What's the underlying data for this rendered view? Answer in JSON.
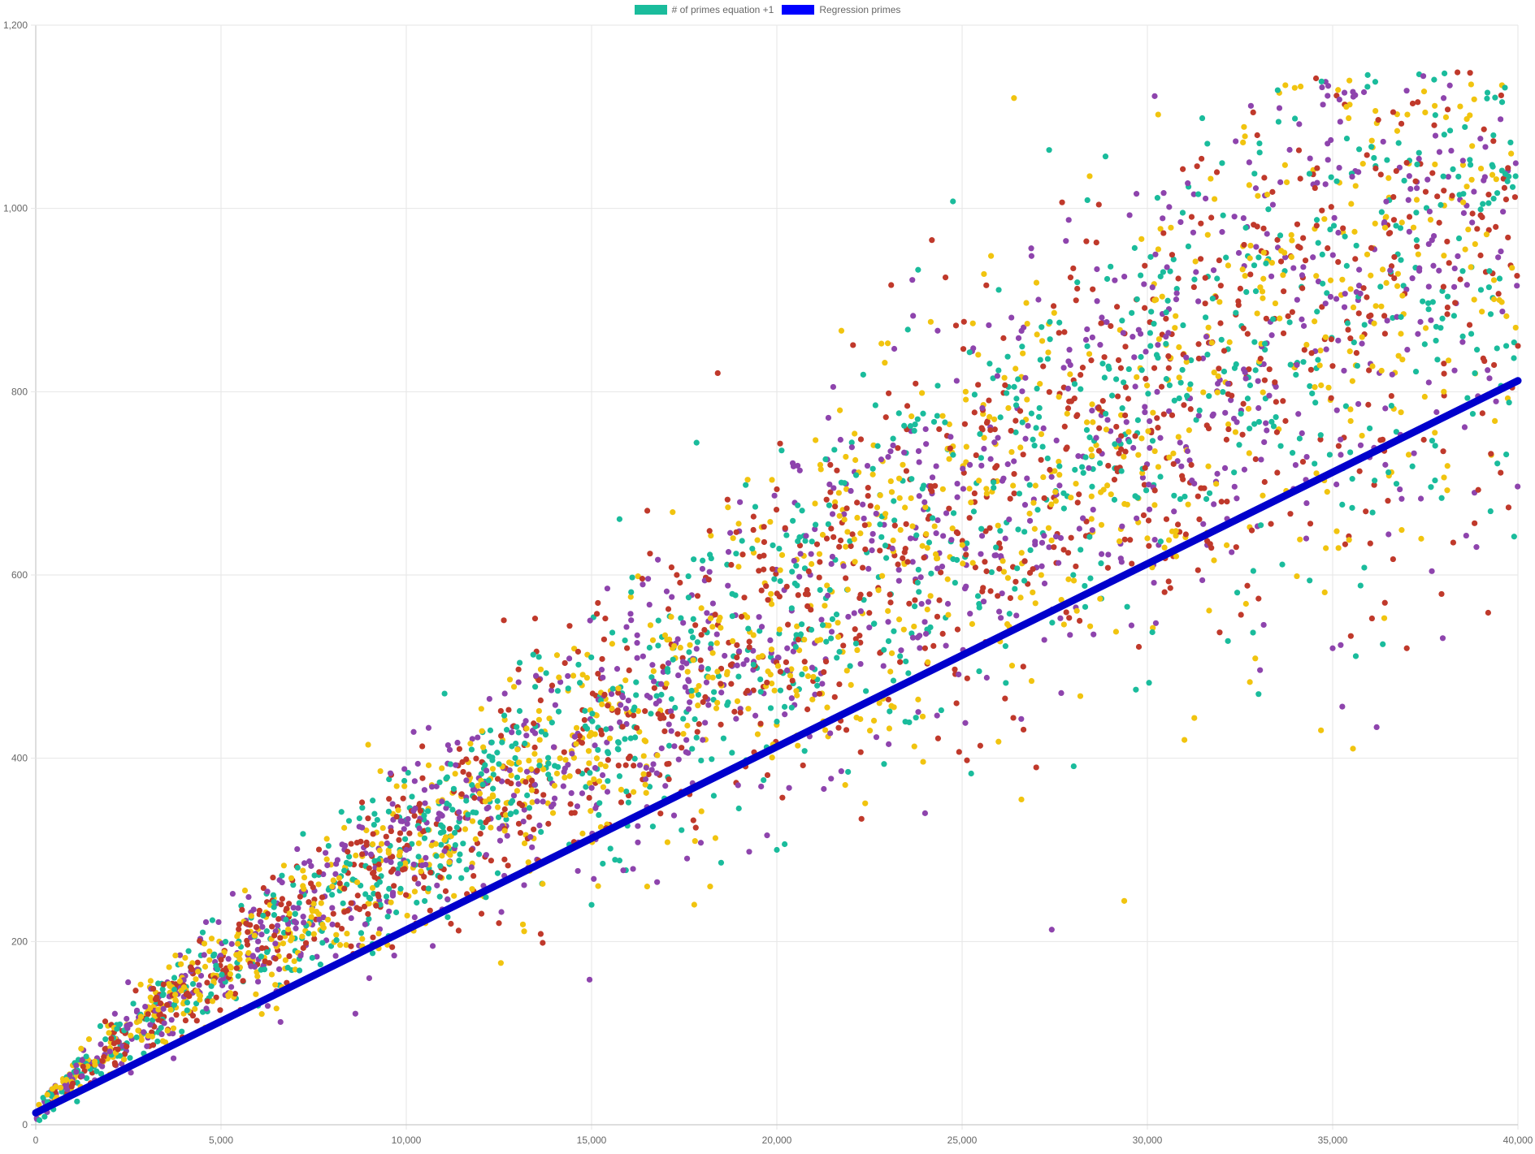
{
  "chart_data": {
    "type": "scatter",
    "title": "",
    "xlabel": "",
    "ylabel": "",
    "xlim": [
      0,
      40000
    ],
    "ylim": [
      0,
      1200
    ],
    "x_ticks": [
      "0",
      "5,000",
      "10,000",
      "15,000",
      "20,000",
      "25,000",
      "30,000",
      "35,000",
      "40,000"
    ],
    "y_ticks": [
      "0",
      "200",
      "400",
      "600",
      "800",
      "1,000",
      "1,200"
    ],
    "grid": true,
    "legend_position": "top-center",
    "point_colors": [
      "#1abc9c",
      "#f1c40f",
      "#c0392b",
      "#8e44ad"
    ],
    "series": [
      {
        "name": "# of primes equation +1",
        "legend_color": "#1abc9c",
        "points": [
          [
            100,
            5
          ],
          [
            500,
            25
          ],
          [
            1000,
            45
          ],
          [
            2000,
            80
          ],
          [
            3000,
            115
          ],
          [
            4000,
            150
          ],
          [
            5000,
            180
          ],
          [
            6000,
            200
          ],
          [
            7000,
            230
          ],
          [
            8000,
            260
          ],
          [
            9000,
            280
          ],
          [
            10000,
            300
          ],
          [
            12000,
            330
          ],
          [
            14000,
            370
          ],
          [
            16000,
            400
          ],
          [
            18000,
            420
          ],
          [
            20000,
            440
          ],
          [
            22000,
            480
          ],
          [
            24000,
            520
          ],
          [
            26000,
            560
          ],
          [
            28000,
            600
          ],
          [
            30000,
            640
          ],
          [
            32000,
            680
          ],
          [
            34000,
            720
          ],
          [
            36000,
            760
          ],
          [
            38000,
            800
          ],
          [
            40000,
            850
          ],
          [
            13500,
            490
          ],
          [
            15000,
            240
          ],
          [
            18200,
            260
          ],
          [
            17300,
            600
          ],
          [
            21500,
            620
          ],
          [
            23800,
            770
          ],
          [
            26600,
            355
          ],
          [
            28800,
            790
          ],
          [
            30500,
            860
          ],
          [
            33200,
            940
          ],
          [
            35500,
            1005
          ],
          [
            36300,
            1037
          ],
          [
            38200,
            1063
          ],
          [
            39800,
            1072
          ],
          [
            39500,
            900
          ],
          [
            37000,
            520
          ],
          [
            35000,
            520
          ],
          [
            33000,
            470
          ],
          [
            31000,
            420
          ],
          [
            27000,
            390
          ],
          [
            24000,
            340
          ],
          [
            20000,
            300
          ],
          [
            16500,
            260
          ],
          [
            12500,
            220
          ],
          [
            9000,
            160
          ],
          [
            6000,
            130
          ],
          [
            3500,
            90
          ]
        ]
      },
      {
        "name": "Regression primes",
        "legend_color": "#0000ff",
        "line_color": "#0000cc",
        "x": [
          0,
          40000
        ],
        "y": [
          13,
          812
        ]
      }
    ]
  }
}
